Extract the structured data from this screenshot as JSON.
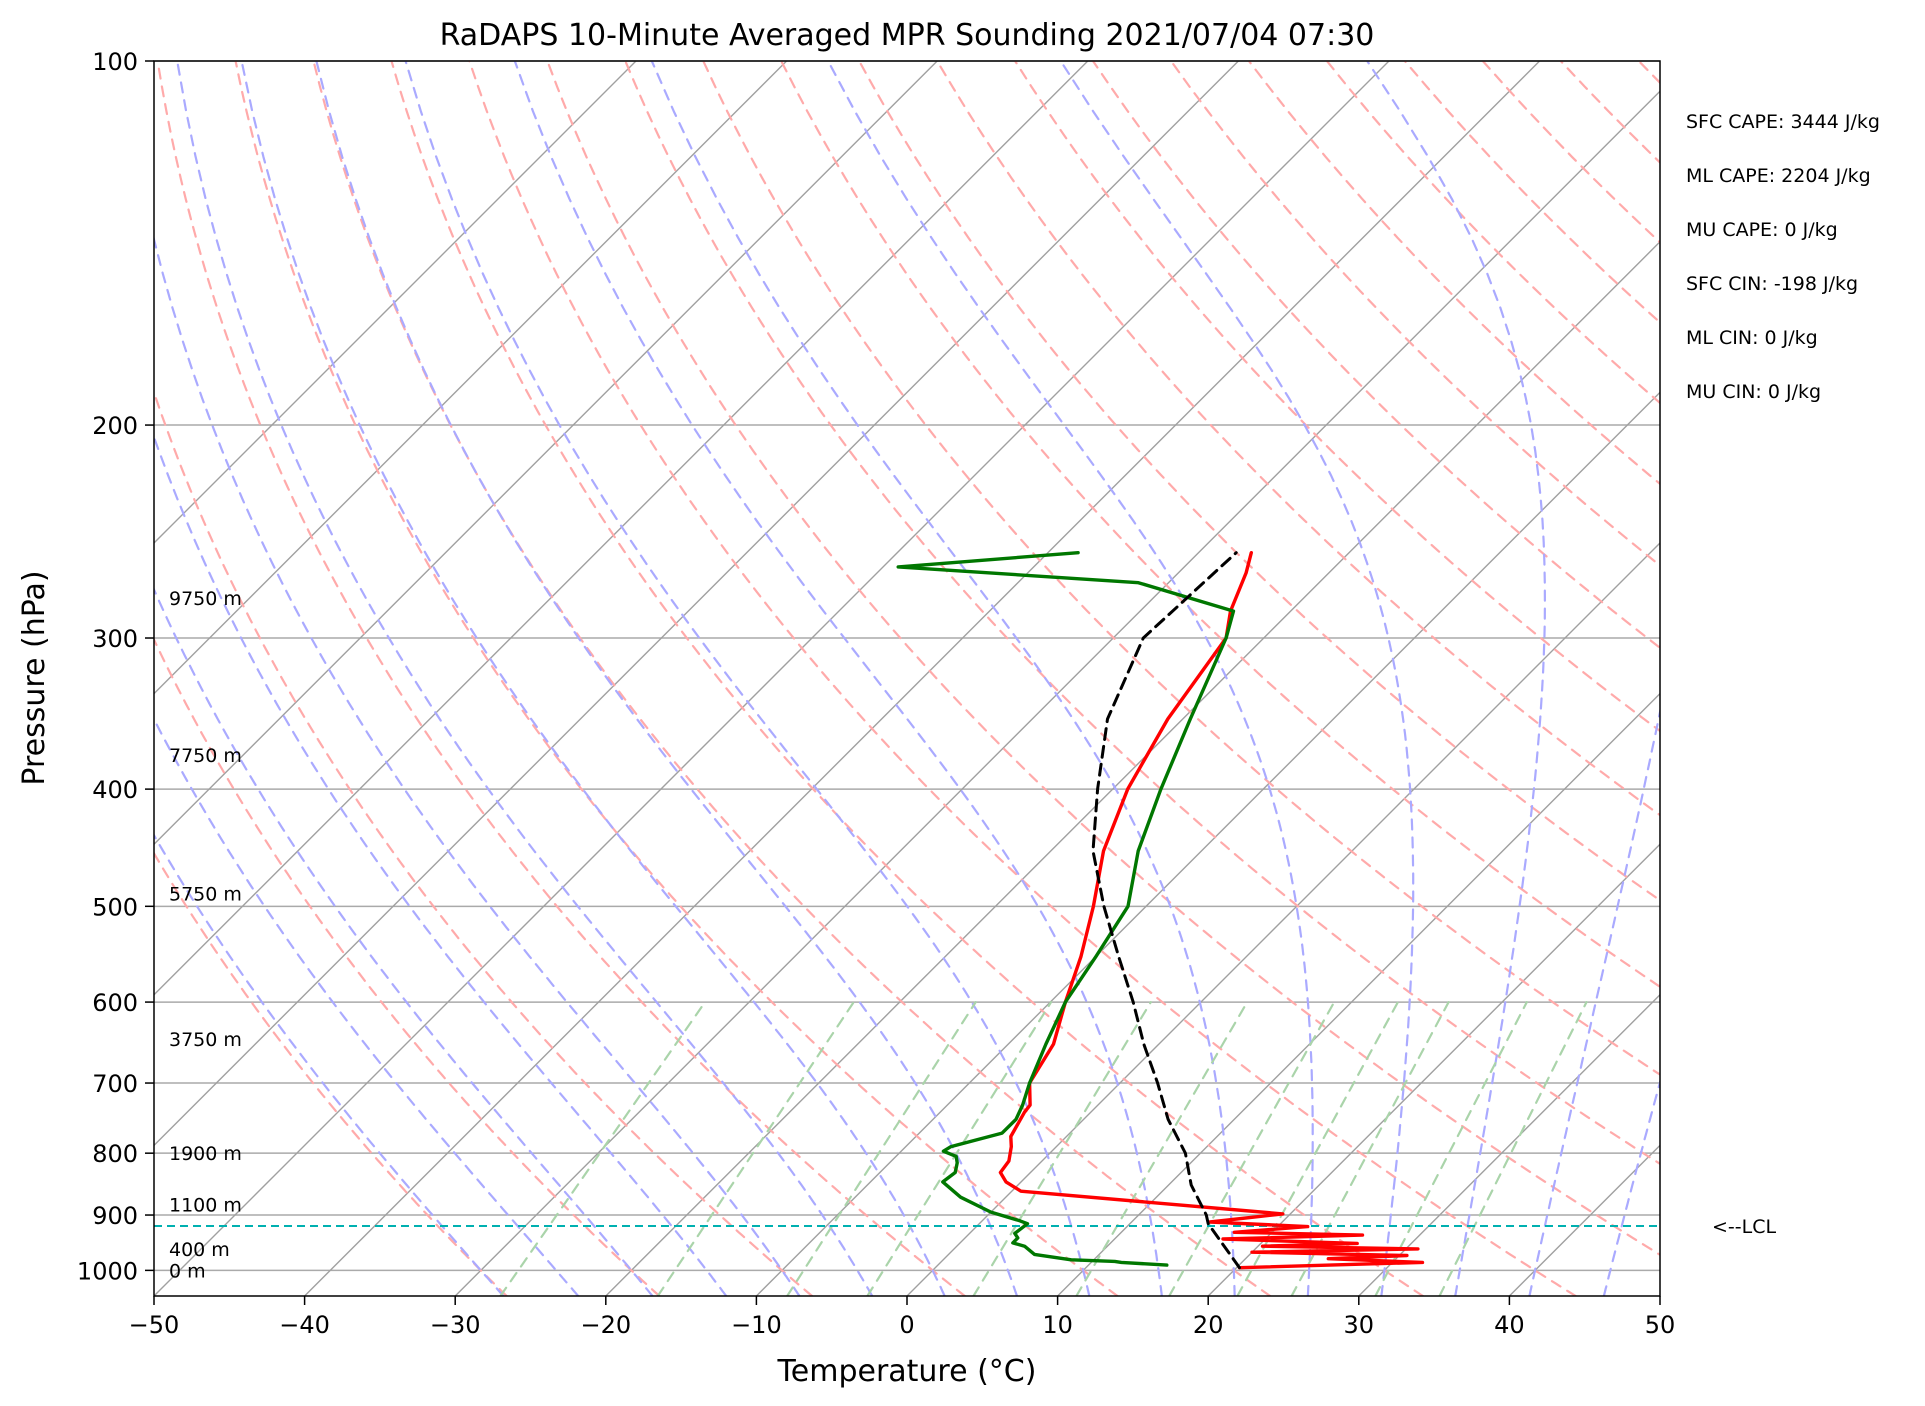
{
  "chart_data": {
    "type": "line",
    "title": "RaDAPS 10-Minute Averaged MPR Sounding 2021/07/04 07:30",
    "xlabel": "Temperature (°C)",
    "ylabel": "Pressure (hPa)",
    "xlim": [
      -50,
      50
    ],
    "ylim": [
      1050,
      100
    ],
    "y_scale": "log",
    "x_ticks": [
      -50,
      -40,
      -30,
      -20,
      -10,
      0,
      10,
      20,
      30,
      40,
      50
    ],
    "x_tick_labels": [
      "−50",
      "−40",
      "−30",
      "−20",
      "−10",
      "0",
      "10",
      "20",
      "30",
      "40",
      "50"
    ],
    "y_ticks": [
      100,
      200,
      300,
      400,
      500,
      600,
      700,
      800,
      900,
      1000
    ],
    "y_tick_labels": [
      "100",
      "200",
      "300",
      "400",
      "500",
      "600",
      "700",
      "800",
      "900",
      "1000"
    ],
    "grid": true,
    "skew": "skew-T (isotherms slanted)",
    "reference_lines": {
      "isotherms_color": "#a0a0a0",
      "dry_adiabats_color": "#ffaaaa",
      "moist_adiabats_color": "#aaaaff",
      "mixing_ratio_color": "#aad4aa",
      "grid_color": "#aaaaaa"
    },
    "series": [
      {
        "color": "#ff0000",
        "points": [
          [
            20.2,
            995
          ],
          [
            32.0,
            985
          ],
          [
            25.5,
            978
          ],
          [
            30.5,
            972
          ],
          [
            20.0,
            966
          ],
          [
            30.8,
            960
          ],
          [
            20.3,
            955
          ],
          [
            26.4,
            950
          ],
          [
            17.2,
            942
          ],
          [
            26.2,
            935
          ],
          [
            17.5,
            930
          ],
          [
            22.0,
            920
          ],
          [
            15.2,
            912
          ],
          [
            19.5,
            898
          ],
          [
            0.6,
            860
          ],
          [
            -1.0,
            845
          ],
          [
            -2.0,
            830
          ],
          [
            -2.2,
            812
          ],
          [
            -3.0,
            790
          ],
          [
            -3.7,
            775
          ],
          [
            -4.4,
            740
          ],
          [
            -4.5,
            730
          ],
          [
            -6.0,
            700
          ],
          [
            -7.0,
            650
          ],
          [
            -9.0,
            600
          ],
          [
            -11.0,
            550
          ],
          [
            -13.5,
            500
          ],
          [
            -16.5,
            450
          ],
          [
            -19.0,
            400
          ],
          [
            -21.0,
            350
          ],
          [
            -22.5,
            300
          ],
          [
            -24.0,
            285
          ],
          [
            -25.5,
            265
          ],
          [
            -26.5,
            255
          ]
        ]
      },
      {
        "color": "#007700",
        "points": [
          [
            15.2,
            990
          ],
          [
            12.0,
            985
          ],
          [
            11.5,
            983
          ],
          [
            8.5,
            980
          ],
          [
            5.7,
            970
          ],
          [
            4.5,
            955
          ],
          [
            3.5,
            949
          ],
          [
            3.5,
            940
          ],
          [
            3.0,
            932
          ],
          [
            3.2,
            915
          ],
          [
            2.5,
            910
          ],
          [
            0.0,
            895
          ],
          [
            -3.0,
            870
          ],
          [
            -5.2,
            845
          ],
          [
            -5.0,
            830
          ],
          [
            -5.5,
            815
          ],
          [
            -6.0,
            805
          ],
          [
            -7.2,
            797
          ],
          [
            -7.0,
            790
          ],
          [
            -4.5,
            770
          ],
          [
            -4.5,
            750
          ],
          [
            -5.0,
            730
          ],
          [
            -6.0,
            700
          ],
          [
            -7.5,
            650
          ],
          [
            -9.0,
            600
          ],
          [
            -10.0,
            550
          ],
          [
            -11.2,
            500
          ],
          [
            -14.2,
            450
          ],
          [
            -16.8,
            400
          ],
          [
            -19.5,
            350
          ],
          [
            -22.5,
            300
          ],
          [
            -23.8,
            285
          ],
          [
            -32.0,
            270
          ],
          [
            -49.0,
            262
          ],
          [
            -38.0,
            255
          ]
        ]
      },
      {
        "color": "#000000",
        "dashed": true,
        "points": [
          [
            20.2,
            995
          ],
          [
            15.2,
            915
          ],
          [
            14.5,
            900
          ],
          [
            11.5,
            850
          ],
          [
            9.0,
            800
          ],
          [
            5.6,
            750
          ],
          [
            2.5,
            700
          ],
          [
            -1.0,
            650
          ],
          [
            -4.5,
            600
          ],
          [
            -8.5,
            550
          ],
          [
            -12.8,
            500
          ],
          [
            -17.2,
            450
          ],
          [
            -21.0,
            400
          ],
          [
            -25.0,
            350
          ],
          [
            -28.0,
            300
          ],
          [
            -27.5,
            255
          ]
        ]
      }
    ],
    "lcl": {
      "pressure": 919,
      "label": "<--LCL",
      "color": "#00b0b0"
    },
    "height_labels": [
      {
        "text": "9750 m",
        "p": 278
      },
      {
        "text": "7750 m",
        "p": 375
      },
      {
        "text": "5750 m",
        "p": 488
      },
      {
        "text": "3750 m",
        "p": 644
      },
      {
        "text": "1900 m",
        "p": 800
      },
      {
        "text": "1100 m",
        "p": 882
      },
      {
        "text": "400 m",
        "p": 960
      },
      {
        "text": "0 m",
        "p": 1000
      }
    ],
    "annotations": [
      "SFC CAPE: 3444 J/kg",
      "ML CAPE: 2204 J/kg",
      "MU CAPE: 0 J/kg",
      "SFC CIN: -198 J/kg",
      "ML CIN: 0 J/kg",
      "MU CIN: 0 J/kg"
    ]
  }
}
